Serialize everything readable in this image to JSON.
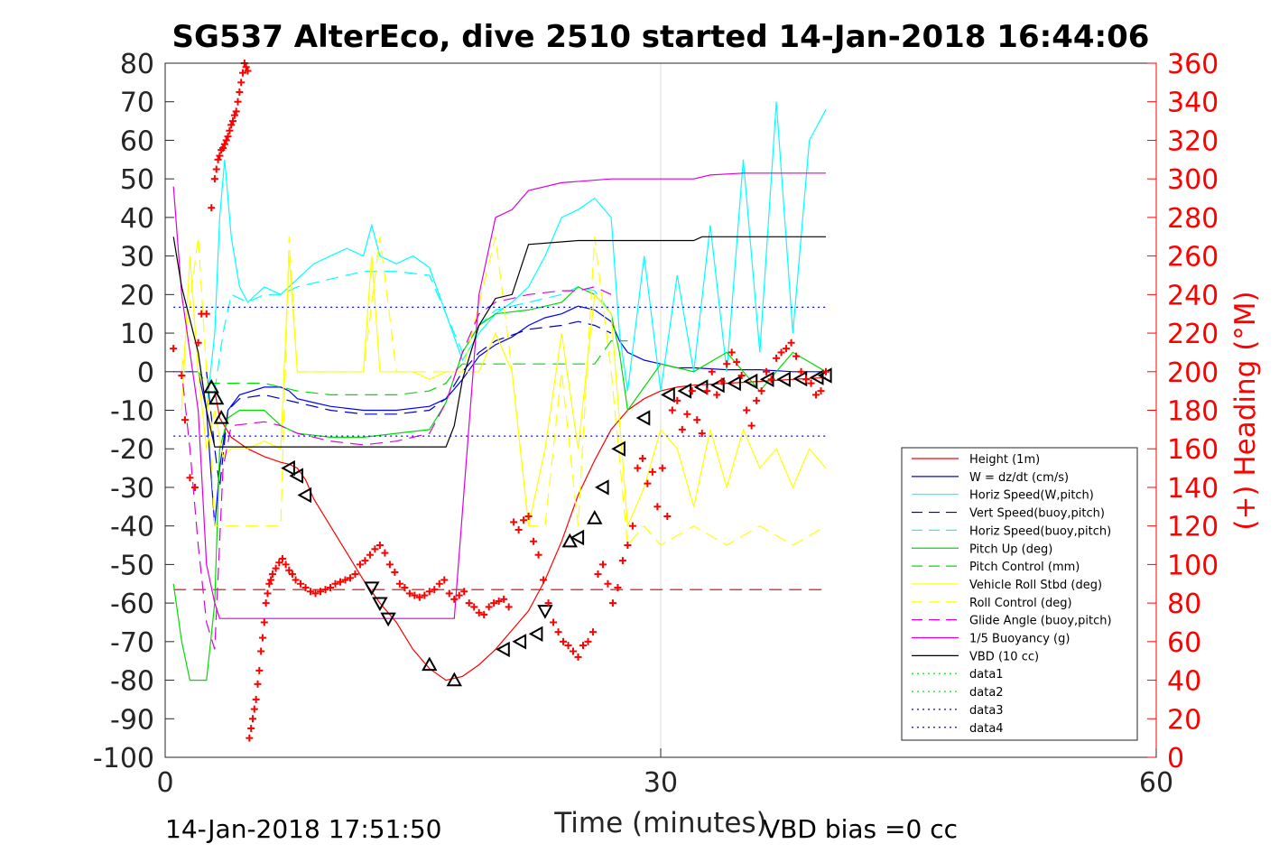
{
  "chart_data": {
    "type": "line",
    "title": "SG537 AlterEco, dive 2510 started 14-Jan-2018 16:44:06",
    "xlabel": "Time (minutes)",
    "ylabel": "",
    "ylabel_right": "(+) Heading (°M)",
    "footer_left": "14-Jan-2018 17:51:50",
    "footer_right": "VBD bias =0 cc",
    "xlim": [
      0,
      60
    ],
    "ylim": [
      -100,
      80
    ],
    "ylim_right": [
      0,
      360
    ],
    "xticks": [
      0,
      30,
      60
    ],
    "yticks": [
      80,
      70,
      60,
      50,
      40,
      30,
      20,
      10,
      0,
      -10,
      -20,
      -30,
      -40,
      -50,
      -60,
      -70,
      -80,
      -90,
      -100
    ],
    "yticks_right": [
      360,
      340,
      320,
      300,
      280,
      260,
      240,
      220,
      200,
      180,
      160,
      140,
      120,
      100,
      80,
      60,
      40,
      20,
      0
    ],
    "grid": "x=30 only",
    "legend_position": "lower-right",
    "series": [
      {
        "name": "Height (1m)",
        "color": "#ff0000",
        "style": "solid",
        "x": [
          3.0,
          3.3,
          4.0,
          5.0,
          6.0,
          7.0,
          7.5,
          8.0,
          8.5,
          9.0,
          10.0,
          11.0,
          12.0,
          13.0,
          14.0,
          15.0,
          16.0,
          17.0,
          18.0,
          19.0,
          20.0,
          21.0,
          22.0,
          23.0,
          24.0,
          25.0,
          26.0,
          27.0,
          28.0,
          29.0,
          30.0,
          31.0,
          32.0,
          34.0,
          36.0,
          38.0,
          40.0
        ],
        "y": [
          -5,
          -12,
          -17,
          -20,
          -22,
          -23.5,
          -24,
          -25,
          -28,
          -33,
          -40,
          -47,
          -54,
          -60,
          -65,
          -72,
          -77,
          -80,
          -79,
          -76,
          -72,
          -67,
          -62,
          -54,
          -44,
          -32,
          -23,
          -15,
          -10,
          -7,
          -5,
          -4,
          -3.5,
          -3,
          -2.5,
          -2,
          -1.5
        ]
      },
      {
        "name": "W = dz/dt (cm/s)",
        "color": "#0000ff",
        "style": "solid",
        "x": [
          0.5,
          2.0,
          2.5,
          3.0,
          3.3,
          3.8,
          4.5,
          6.0,
          7.0,
          7.5,
          8.0,
          9.0,
          10.0,
          12.0,
          14.0,
          16.0,
          17.0,
          18.0,
          19.0,
          20.0,
          21.0,
          22.0,
          23.0,
          24.0,
          25.0,
          26.0,
          27.0,
          27.5,
          28.0,
          29.0,
          30.0,
          31.0,
          32.0,
          34.0,
          36.0,
          38.0,
          40.0
        ],
        "y": [
          0,
          0,
          -10,
          -40,
          -25,
          -10,
          -6,
          -4,
          -4,
          -5,
          -7,
          -8,
          -9,
          -10,
          -10,
          -9,
          -7,
          -2,
          4,
          7,
          9,
          12,
          14,
          15,
          17,
          16,
          13,
          8,
          5,
          3,
          2,
          1,
          1,
          0.5,
          0.5,
          0,
          0
        ]
      },
      {
        "name": "Horiz Speed(W,pitch)",
        "color": "#00ffff",
        "style": "solid",
        "x": [
          2.5,
          3.0,
          3.3,
          3.6,
          4.0,
          4.5,
          5.0,
          6.0,
          7.0,
          8.0,
          9.0,
          10.0,
          11.0,
          12.0,
          12.5,
          13.0,
          14.0,
          15.0,
          16.0,
          17.0,
          18.0,
          19.0,
          20.0,
          21.0,
          22.0,
          23.0,
          24.0,
          25.0,
          26.0,
          27.0,
          27.5,
          28.0,
          29.0,
          30.0,
          31.0,
          32.0,
          33.0,
          34.0,
          35.0,
          36.0,
          37.0,
          38.0,
          39.0,
          40.0
        ],
        "y": [
          -10,
          10,
          40,
          55,
          35,
          22,
          18,
          22,
          20,
          24,
          28,
          30,
          32,
          30,
          38,
          30,
          28,
          30,
          27,
          15,
          3,
          10,
          15,
          18,
          22,
          30,
          40,
          42,
          45,
          40,
          10,
          -5,
          30,
          -5,
          25,
          0,
          38,
          0,
          55,
          5,
          70,
          10,
          60,
          68
        ]
      },
      {
        "name": "Vert Speed(buoy,pitch)",
        "color": "#0000bb",
        "style": "dash",
        "x": [
          2.5,
          3.0,
          3.3,
          3.8,
          4.5,
          6.0,
          7.0,
          8.0,
          10.0,
          12.0,
          14.0,
          16.0,
          17.0,
          18.0,
          19.0,
          20.0,
          22.0,
          24.0,
          25.0,
          26.0,
          27.0
        ],
        "y": [
          0,
          -20,
          -30,
          -10,
          -7,
          -6,
          -7,
          -8,
          -10,
          -11,
          -11,
          -10,
          -7,
          0,
          5,
          8,
          11,
          12,
          13,
          12,
          10
        ]
      },
      {
        "name": "Horiz Speed(buoy,pitch)",
        "color": "#00ffff",
        "style": "dash",
        "x": [
          3.0,
          3.5,
          4.0,
          5.0,
          6.0,
          7.0,
          8.0,
          10.0,
          12.0,
          14.0,
          16.0,
          17.0,
          18.0,
          19.0,
          20.0,
          22.0,
          24.0,
          25.0,
          26.0,
          27.0
        ],
        "y": [
          -5,
          10,
          20,
          18,
          20,
          20,
          22,
          24,
          26,
          26,
          25,
          15,
          5,
          12,
          16,
          18,
          20,
          22,
          21,
          15
        ]
      },
      {
        "name": "Pitch Up (deg)",
        "color": "#00dd00",
        "style": "solid",
        "x": [
          0.5,
          1.0,
          1.5,
          2.0,
          2.5,
          3.0,
          3.3,
          3.8,
          4.5,
          6.0,
          7.0,
          8.0,
          10.0,
          12.0,
          14.0,
          16.0,
          17.0,
          18.0,
          19.0,
          20.0,
          22.0,
          24.0,
          25.0,
          26.0,
          27.0,
          27.5,
          28.0,
          30.0,
          32.0,
          34.0,
          36.0,
          38.0,
          40.0
        ],
        "y": [
          -55,
          -70,
          -80,
          -80,
          -80,
          -60,
          -20,
          -12,
          -10,
          -10,
          -14,
          -16,
          -17,
          -17,
          -16,
          -15,
          -8,
          5,
          12,
          15,
          16,
          18,
          22,
          20,
          15,
          5,
          -10,
          2,
          0,
          5,
          -5,
          5,
          0
        ]
      },
      {
        "name": "Pitch Control (mm)",
        "color": "#00dd00",
        "style": "dash",
        "x": [
          0.5,
          2.0,
          2.5,
          3.0,
          3.5,
          4.0,
          6.0,
          8.0,
          10.0,
          12.0,
          14.0,
          16.0,
          17.0,
          17.5,
          18.0,
          20.0,
          22.0,
          24.0,
          26.0,
          27.0,
          28.0
        ],
        "y": [
          0,
          0,
          -3,
          -3,
          -3,
          -3,
          -3,
          -5,
          -6,
          -6,
          -6,
          -5,
          -3,
          0,
          2,
          2,
          2,
          2,
          2,
          8,
          8
        ]
      },
      {
        "name": "Vehicle Roll Stbd (deg)",
        "color": "#ffff00",
        "style": "solid",
        "x": [
          1.0,
          1.5,
          2.0,
          2.5,
          3.0,
          3.5,
          4.0,
          5.0,
          6.0,
          7.0,
          7.5,
          8.0,
          9.0,
          10.0,
          11.0,
          12.0,
          12.5,
          13.0,
          14.0,
          15.0,
          16.0,
          17.0,
          18.0,
          19.0,
          20.0,
          21.0,
          22.0,
          23.0,
          24.0,
          25.0,
          26.0,
          27.0,
          28.0,
          29.0,
          30.0,
          31.0,
          32.0,
          33.0,
          34.0,
          35.0,
          36.0,
          37.0,
          38.0,
          39.0,
          40.0
        ],
        "y": [
          -10,
          30,
          0,
          -20,
          -10,
          -22,
          -20,
          -20,
          -18,
          -20,
          30,
          0,
          0,
          0,
          0,
          0,
          30,
          0,
          0,
          0,
          -2,
          0,
          0,
          0,
          10,
          0,
          -40,
          -20,
          10,
          -20,
          20,
          15,
          -40,
          -30,
          -15,
          -20,
          -35,
          -15,
          -30,
          -15,
          -25,
          -20,
          -30,
          -20,
          -25
        ]
      },
      {
        "name": "Roll Control (deg)",
        "color": "#ffff00",
        "style": "dash",
        "x": [
          1.0,
          2.0,
          2.5,
          3.0,
          4.0,
          6.0,
          7.0,
          7.5,
          8.0,
          10.0,
          12.0,
          13.0,
          14.0,
          16.0,
          18.0,
          20.0,
          21.0,
          22.0,
          23.0,
          24.0,
          25.0,
          26.0,
          27.0,
          28.0,
          29.0,
          30.0,
          32.0,
          34.0,
          36.0,
          38.0,
          40.0
        ],
        "y": [
          0,
          35,
          0,
          -40,
          -40,
          -40,
          -40,
          35,
          0,
          0,
          0,
          35,
          0,
          0,
          0,
          35,
          0,
          -40,
          -40,
          0,
          -40,
          35,
          0,
          -45,
          -40,
          -45,
          -40,
          -45,
          -40,
          -45,
          -40
        ]
      },
      {
        "name": "Glide Angle (buoy,pitch)",
        "color": "#dd00dd",
        "style": "dash",
        "x": [
          0.5,
          1.0,
          1.5,
          2.0,
          2.5,
          3.0,
          3.5,
          4.0,
          6.0,
          7.0,
          8.0,
          10.0,
          12.0,
          14.0,
          16.0,
          17.0,
          18.0,
          19.0,
          20.0,
          22.0,
          24.0,
          25.0,
          26.0,
          27.0
        ],
        "y": [
          0,
          0,
          -20,
          -45,
          -65,
          -72,
          -25,
          -14,
          -13,
          -14,
          -16,
          -18,
          -19,
          -18,
          -16,
          -8,
          5,
          15,
          18,
          20,
          21,
          21,
          22,
          20
        ]
      },
      {
        "name": "1/5 Buoyancy (g)",
        "color": "#dd00dd",
        "style": "solid",
        "x": [
          0.5,
          1.0,
          2.0,
          2.5,
          3.0,
          3.3,
          17.0,
          17.5,
          19.0,
          20.0,
          21.0,
          22.0,
          24.0,
          27.0,
          30.0,
          32.0,
          33.0,
          35.0,
          40.0
        ],
        "y": [
          48,
          20,
          -10,
          -50,
          -60,
          -64,
          -64,
          -64,
          20,
          40,
          42,
          47,
          49,
          50,
          50,
          50,
          51,
          51.5,
          51.5
        ]
      },
      {
        "name": "VBD (10 cc)",
        "color": "#000000",
        "style": "solid",
        "x": [
          0.5,
          1.0,
          2.0,
          2.5,
          3.0,
          17.0,
          17.5,
          18.0,
          19.0,
          20.0,
          21.0,
          22.0,
          25.0,
          30.0,
          32.0,
          32.5,
          35.0,
          40.0
        ],
        "y": [
          35,
          22,
          5,
          -10,
          -19.5,
          -19.5,
          -14,
          -2,
          12,
          19,
          20,
          33,
          34,
          34,
          34,
          35,
          35,
          35
        ]
      },
      {
        "name": "data1",
        "color": "#00dd00",
        "style": "dot",
        "x": [],
        "y": []
      },
      {
        "name": "data2",
        "color": "#00dd00",
        "style": "dot",
        "x": [],
        "y": []
      },
      {
        "name": "data3",
        "color": "#0000ff",
        "style": "dot",
        "x": [
          0.5,
          40
        ],
        "y": [
          16.7,
          16.7
        ]
      },
      {
        "name": "data4",
        "color": "#0000ff",
        "style": "dot",
        "x": [
          0.5,
          40
        ],
        "y": [
          -16.7,
          -16.7
        ]
      }
    ],
    "reference_lines": [
      {
        "color": "#cc0000",
        "style": "dash",
        "x": [
          0.5,
          40
        ],
        "y": [
          -56.5,
          -56.5
        ]
      }
    ],
    "heading_points": {
      "color": "#ff0000",
      "axis": "right",
      "x": [
        0.5,
        1.0,
        1.2,
        1.5,
        1.8,
        2.0,
        2.2,
        2.5,
        2.8,
        3.0,
        3.1,
        3.2,
        3.3,
        3.4,
        3.5,
        3.6,
        3.7,
        3.8,
        3.9,
        4.0,
        4.1,
        4.2,
        4.3,
        4.4,
        4.5,
        4.6,
        4.7,
        4.8,
        4.9,
        5.0,
        5.1,
        5.2,
        5.3,
        5.4,
        5.5,
        5.6,
        5.7,
        5.8,
        5.9,
        6.0,
        6.1,
        6.2,
        6.3,
        6.4,
        6.5,
        6.7,
        6.9,
        7.1,
        7.3,
        7.5,
        7.7,
        7.9,
        8.2,
        8.5,
        8.8,
        9.1,
        9.4,
        9.7,
        10.0,
        10.3,
        10.6,
        10.9,
        11.2,
        11.5,
        11.8,
        12.1,
        12.4,
        12.7,
        13.0,
        13.3,
        13.6,
        13.9,
        14.2,
        14.5,
        14.8,
        15.1,
        15.4,
        15.7,
        16.0,
        16.3,
        16.6,
        16.9,
        17.2,
        17.5,
        17.8,
        18.1,
        18.4,
        18.7,
        19.0,
        19.3,
        19.6,
        19.9,
        20.2,
        20.5,
        20.8,
        21.1,
        21.4,
        21.7,
        22.0,
        22.3,
        22.6,
        22.9,
        23.2,
        23.5,
        23.8,
        24.1,
        24.4,
        24.7,
        25.0,
        25.3,
        25.6,
        25.9,
        26.2,
        26.5,
        26.8,
        27.1,
        27.4,
        27.7,
        28.0,
        28.3,
        28.6,
        28.9,
        29.2,
        29.5,
        29.8,
        30.1,
        30.4,
        30.7,
        31.0,
        31.3,
        31.6,
        31.9,
        32.2,
        32.5,
        32.8,
        33.1,
        33.4,
        33.7,
        34.0,
        34.3,
        34.6,
        34.9,
        35.2,
        35.5,
        35.8,
        36.1,
        36.4,
        36.7,
        37.0,
        37.3,
        37.6,
        37.9,
        38.2,
        38.5,
        38.8,
        39.1,
        39.4,
        39.7,
        40.0
      ],
      "y": [
        212,
        198,
        175,
        145,
        140,
        215,
        230,
        230,
        285,
        300,
        305,
        310,
        312,
        315,
        316,
        318,
        320,
        322,
        325,
        328,
        330,
        333,
        335,
        340,
        345,
        350,
        355,
        360,
        358,
        356,
        10,
        15,
        20,
        25,
        30,
        38,
        45,
        55,
        62,
        70,
        80,
        85,
        90,
        92,
        95,
        98,
        101,
        103,
        100,
        97,
        95,
        92,
        90,
        88,
        86,
        85,
        86,
        87,
        88,
        90,
        91,
        92,
        93,
        95,
        100,
        102,
        105,
        108,
        110,
        106,
        100,
        96,
        90,
        88,
        85,
        84,
        83,
        84,
        86,
        87,
        90,
        92,
        85,
        82,
        84,
        86,
        80,
        78,
        75,
        74,
        78,
        80,
        81,
        82,
        78,
        122,
        118,
        123,
        125,
        112,
        105,
        92,
        80,
        70,
        65,
        60,
        58,
        55,
        52,
        58,
        60,
        65,
        95,
        100,
        90,
        80,
        88,
        102,
        110,
        120,
        150,
        155,
        142,
        148,
        130,
        150,
        125,
        180,
        185,
        170,
        178,
        190,
        175,
        168,
        190,
        200,
        188,
        195,
        204,
        210,
        205,
        198,
        180,
        172,
        185,
        190,
        200,
        196,
        207,
        210,
        212,
        215,
        208,
        200,
        196,
        194,
        188,
        190,
        200
      ]
    },
    "markers_up": {
      "color": "#000000",
      "x": [
        2.8,
        3.1,
        3.4,
        16.0,
        17.5,
        24.5,
        26.0
      ],
      "y": [
        -4,
        -7,
        -12,
        -76,
        -80,
        -44,
        -38
      ]
    },
    "markers_down": {
      "color": "#000000",
      "x": [
        12.5,
        13.0,
        13.5,
        23.0
      ],
      "y": [
        -56,
        -60,
        -64,
        -62
      ]
    },
    "markers_left": {
      "color": "#000000",
      "x": [
        7.5,
        8.0,
        8.5,
        20.5,
        21.5,
        22.5,
        25.0,
        26.5,
        27.5,
        29.0,
        30.5,
        31.5,
        32.5,
        33.5,
        34.5,
        35.5,
        36.5,
        37.5,
        38.5,
        39.5,
        40.0
      ],
      "y": [
        -25,
        -27,
        -32,
        -72,
        -70,
        -68,
        -43,
        -30,
        -20,
        -12,
        -6,
        -5,
        -4,
        -3.5,
        -3,
        -2.5,
        -2,
        -2,
        -1.8,
        -1.5,
        -1
      ]
    }
  }
}
